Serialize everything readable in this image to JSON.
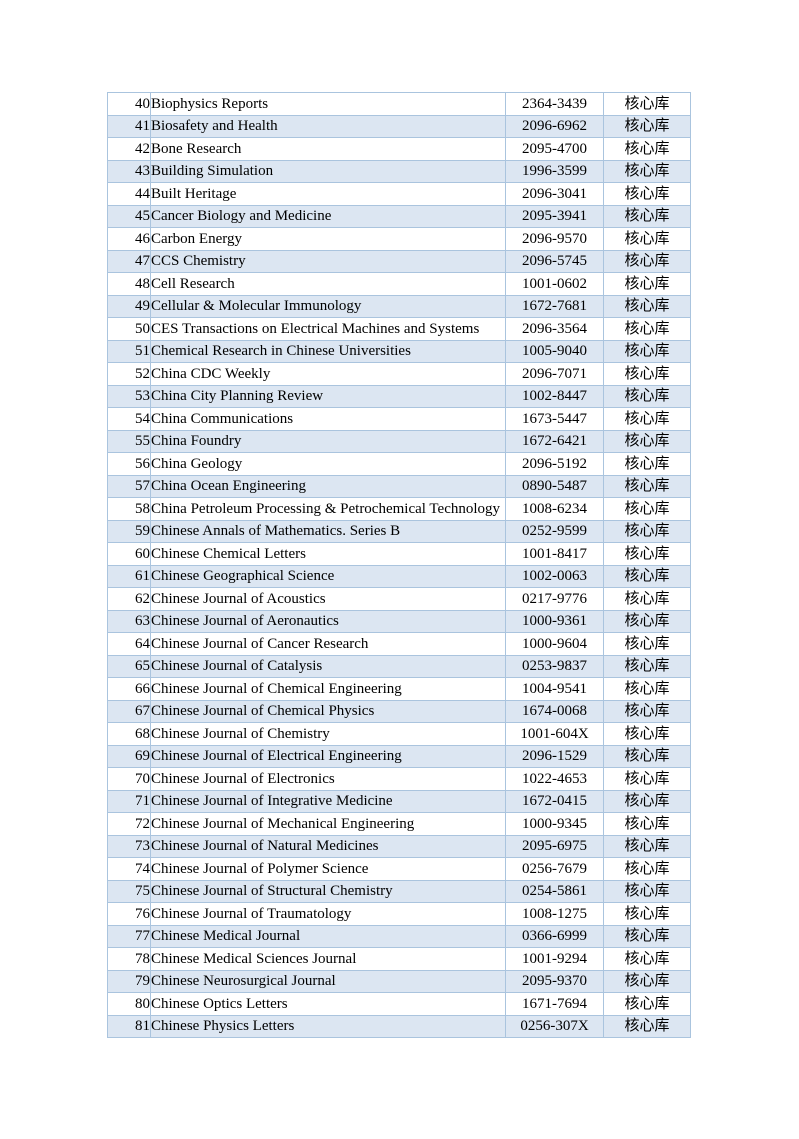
{
  "document": {
    "type": "journal-index-page",
    "category_label": "核心库"
  },
  "colors": {
    "row_shade": "#dce6f2",
    "border": "#aac4de",
    "page_background": "#ffffff",
    "text": "#000000"
  },
  "table": {
    "columns": [
      "no",
      "name",
      "issn",
      "category"
    ],
    "rows": [
      {
        "no": "40",
        "name": "Biophysics Reports",
        "issn": "2364-3439",
        "category": "核心库"
      },
      {
        "no": "41",
        "name": "Biosafety and Health",
        "issn": "2096-6962",
        "category": "核心库"
      },
      {
        "no": "42",
        "name": "Bone Research",
        "issn": "2095-4700",
        "category": "核心库"
      },
      {
        "no": "43",
        "name": "Building Simulation",
        "issn": "1996-3599",
        "category": "核心库"
      },
      {
        "no": "44",
        "name": "Built Heritage",
        "issn": "2096-3041",
        "category": "核心库"
      },
      {
        "no": "45",
        "name": "Cancer Biology and Medicine",
        "issn": "2095-3941",
        "category": "核心库"
      },
      {
        "no": "46",
        "name": "Carbon Energy",
        "issn": "2096-9570",
        "category": "核心库"
      },
      {
        "no": "47",
        "name": "CCS Chemistry",
        "issn": "2096-5745",
        "category": "核心库"
      },
      {
        "no": "48",
        "name": "Cell Research",
        "issn": "1001-0602",
        "category": "核心库"
      },
      {
        "no": "49",
        "name": "Cellular & Molecular Immunology",
        "issn": "1672-7681",
        "category": "核心库"
      },
      {
        "no": "50",
        "name": "CES Transactions on Electrical Machines and Systems",
        "issn": "2096-3564",
        "category": "核心库"
      },
      {
        "no": "51",
        "name": "Chemical Research in Chinese Universities",
        "issn": "1005-9040",
        "category": "核心库"
      },
      {
        "no": "52",
        "name": "China CDC Weekly",
        "issn": "2096-7071",
        "category": "核心库"
      },
      {
        "no": "53",
        "name": "China City Planning Review",
        "issn": "1002-8447",
        "category": "核心库"
      },
      {
        "no": "54",
        "name": "China Communications",
        "issn": "1673-5447",
        "category": "核心库"
      },
      {
        "no": "55",
        "name": "China Foundry",
        "issn": "1672-6421",
        "category": "核心库"
      },
      {
        "no": "56",
        "name": "China Geology",
        "issn": "2096-5192",
        "category": "核心库"
      },
      {
        "no": "57",
        "name": "China Ocean Engineering",
        "issn": "0890-5487",
        "category": "核心库"
      },
      {
        "no": "58",
        "name": "China Petroleum Processing & Petrochemical Technology",
        "issn": "1008-6234",
        "category": "核心库"
      },
      {
        "no": "59",
        "name": "Chinese Annals of Mathematics. Series B",
        "issn": "0252-9599",
        "category": "核心库"
      },
      {
        "no": "60",
        "name": "Chinese Chemical Letters",
        "issn": "1001-8417",
        "category": "核心库"
      },
      {
        "no": "61",
        "name": "Chinese Geographical Science",
        "issn": "1002-0063",
        "category": "核心库"
      },
      {
        "no": "62",
        "name": "Chinese Journal of Acoustics",
        "issn": "0217-9776",
        "category": "核心库"
      },
      {
        "no": "63",
        "name": "Chinese Journal of Aeronautics",
        "issn": "1000-9361",
        "category": "核心库"
      },
      {
        "no": "64",
        "name": "Chinese Journal of Cancer Research",
        "issn": "1000-9604",
        "category": "核心库"
      },
      {
        "no": "65",
        "name": "Chinese Journal of Catalysis",
        "issn": "0253-9837",
        "category": "核心库"
      },
      {
        "no": "66",
        "name": "Chinese Journal of Chemical Engineering",
        "issn": "1004-9541",
        "category": "核心库"
      },
      {
        "no": "67",
        "name": "Chinese Journal of Chemical Physics",
        "issn": "1674-0068",
        "category": "核心库"
      },
      {
        "no": "68",
        "name": "Chinese Journal of Chemistry",
        "issn": "1001-604X",
        "category": "核心库"
      },
      {
        "no": "69",
        "name": "Chinese Journal of Electrical Engineering",
        "issn": "2096-1529",
        "category": "核心库"
      },
      {
        "no": "70",
        "name": "Chinese Journal of Electronics",
        "issn": "1022-4653",
        "category": "核心库"
      },
      {
        "no": "71",
        "name": "Chinese Journal of Integrative Medicine",
        "issn": "1672-0415",
        "category": "核心库"
      },
      {
        "no": "72",
        "name": "Chinese Journal of Mechanical Engineering",
        "issn": "1000-9345",
        "category": "核心库"
      },
      {
        "no": "73",
        "name": "Chinese Journal of Natural Medicines",
        "issn": "2095-6975",
        "category": "核心库"
      },
      {
        "no": "74",
        "name": "Chinese Journal of Polymer Science",
        "issn": "0256-7679",
        "category": "核心库"
      },
      {
        "no": "75",
        "name": "Chinese Journal of Structural Chemistry",
        "issn": "0254-5861",
        "category": "核心库"
      },
      {
        "no": "76",
        "name": "Chinese Journal of Traumatology",
        "issn": "1008-1275",
        "category": "核心库"
      },
      {
        "no": "77",
        "name": "Chinese Medical Journal",
        "issn": "0366-6999",
        "category": "核心库"
      },
      {
        "no": "78",
        "name": "Chinese Medical Sciences Journal",
        "issn": "1001-9294",
        "category": "核心库"
      },
      {
        "no": "79",
        "name": "Chinese Neurosurgical Journal",
        "issn": "2095-9370",
        "category": "核心库"
      },
      {
        "no": "80",
        "name": "Chinese Optics Letters",
        "issn": "1671-7694",
        "category": "核心库"
      },
      {
        "no": "81",
        "name": "Chinese Physics Letters",
        "issn": "0256-307X",
        "category": "核心库"
      }
    ]
  }
}
